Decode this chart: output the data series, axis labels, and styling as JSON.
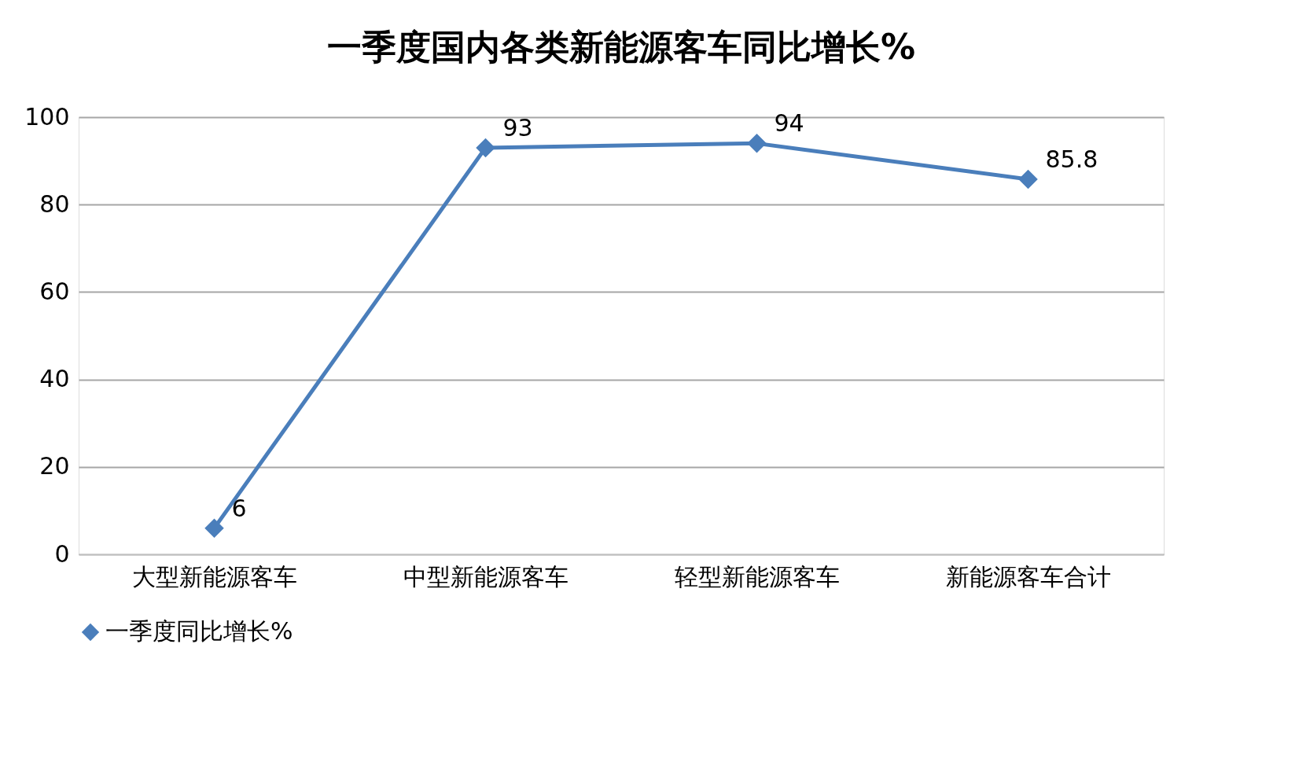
{
  "chart_data": {
    "type": "line",
    "title": "一季度国内各类新能源客车同比增长%",
    "categories": [
      "大型新能源客车",
      "中型新能源客车",
      "轻型新能源客车",
      "新能源客车合计"
    ],
    "series": [
      {
        "name": "一季度同比增长%",
        "color": "#4a7ebb",
        "values": [
          6,
          93,
          94,
          85.8
        ]
      }
    ],
    "ylim": [
      0,
      100
    ],
    "yticks": [
      0,
      20,
      40,
      60,
      80,
      100
    ],
    "grid": "y",
    "legend": "bottom",
    "marker": "diamond",
    "line_style": "solid",
    "data_labels": true
  }
}
